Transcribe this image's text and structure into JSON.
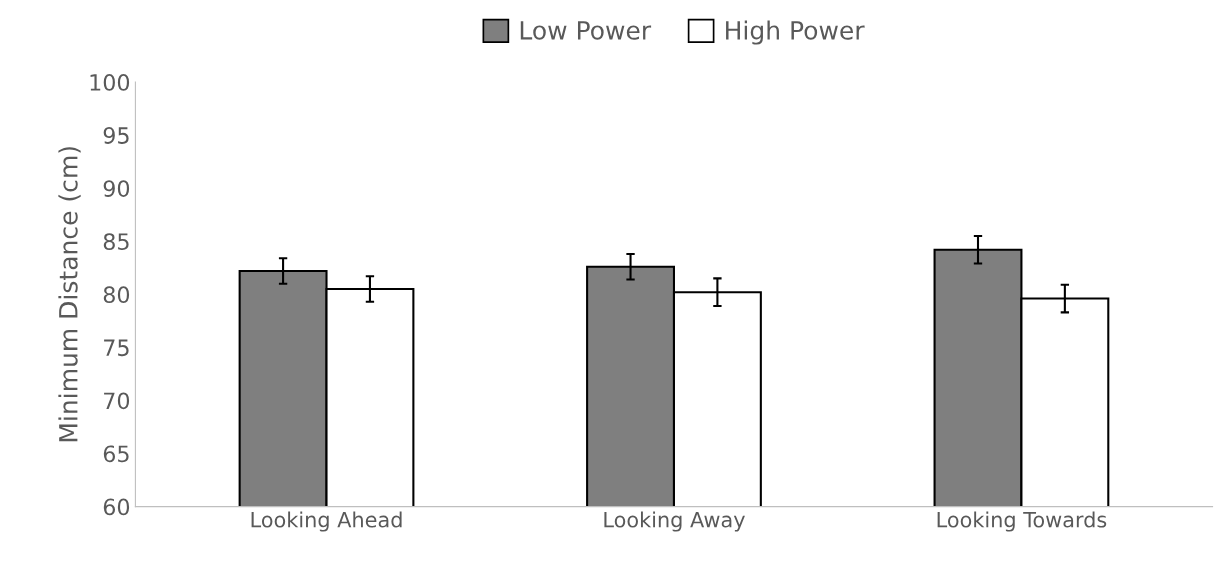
{
  "chart_data": {
    "type": "bar",
    "ylabel": "Minimum Distance (cm)",
    "categories": [
      "Looking Ahead",
      "Looking Away",
      "Looking Towards"
    ],
    "series": [
      {
        "name": "Low Power",
        "color": "#7f7f7f",
        "values": [
          82.2,
          82.6,
          84.2
        ],
        "errors": [
          1.2,
          1.2,
          1.3
        ]
      },
      {
        "name": "High Power",
        "color": "#ffffff",
        "values": [
          80.5,
          80.2,
          79.6
        ],
        "errors": [
          1.2,
          1.3,
          1.3
        ]
      }
    ],
    "ylim": [
      60,
      100
    ],
    "yticks": [
      60,
      65,
      70,
      75,
      80,
      85,
      90,
      95,
      100
    ],
    "grid": false,
    "legend": "top"
  }
}
